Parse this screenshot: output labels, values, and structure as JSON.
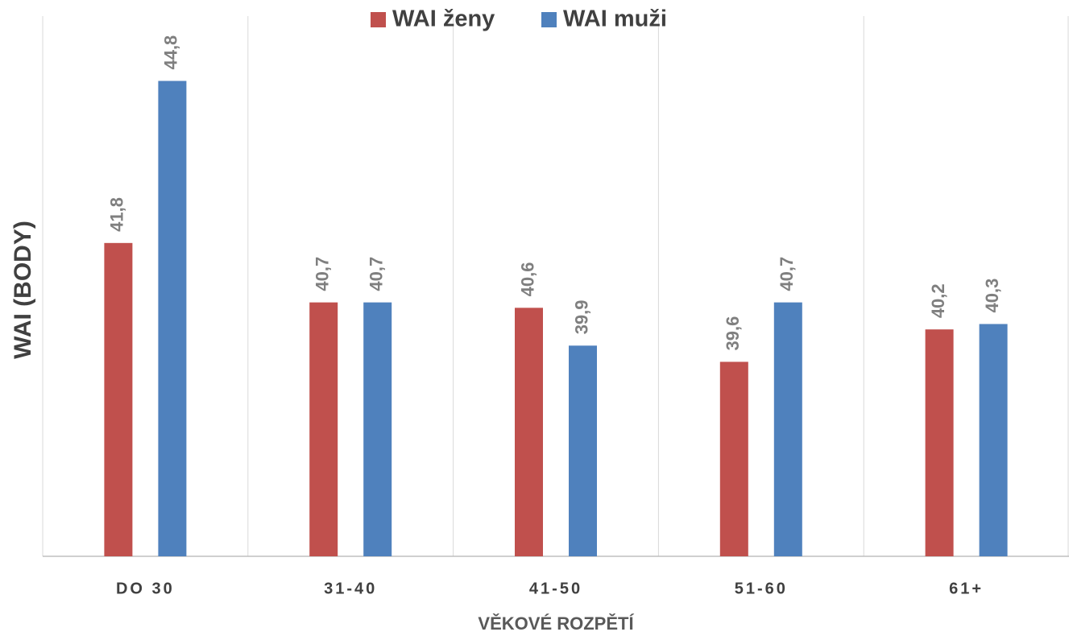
{
  "chart_data": {
    "type": "bar",
    "categories": [
      "DO 30",
      "31-40",
      "41-50",
      "51-60",
      "61+"
    ],
    "series": [
      {
        "name": "WAI ženy",
        "color": "#c0504d",
        "values": [
          41.8,
          40.7,
          40.6,
          39.6,
          40.2
        ],
        "value_labels": [
          "41,8",
          "40,7",
          "40,6",
          "39,6",
          "40,2"
        ]
      },
      {
        "name": "WAI muži",
        "color": "#4f81bd",
        "values": [
          44.8,
          40.7,
          39.9,
          40.7,
          40.3
        ],
        "value_labels": [
          "44,8",
          "40,7",
          "39,9",
          "40,7",
          "40,3"
        ]
      }
    ],
    "ylim": [
      36,
      46
    ],
    "xlabel": "VĚKOVÉ ROZPĚTÍ",
    "ylabel": "WAI (BODY)",
    "legend": "top"
  }
}
